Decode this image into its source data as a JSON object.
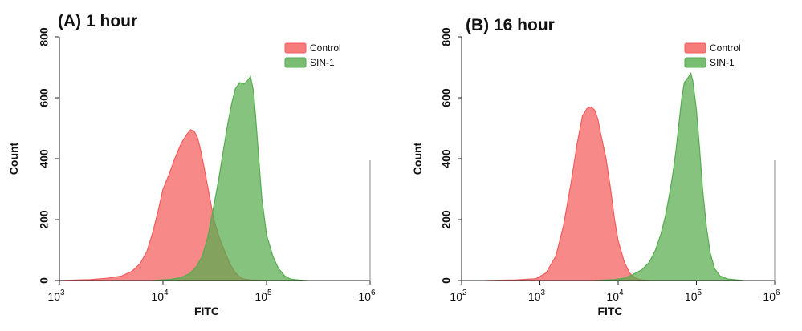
{
  "chart_data": [
    {
      "type": "area",
      "title": "(A) 1 hour",
      "xlabel": "FITC",
      "ylabel": "Count",
      "x_scale": "log",
      "xlim": [
        1000,
        1000000
      ],
      "ylim": [
        0,
        800
      ],
      "x_ticks": [
        {
          "base": "10",
          "exp": "3",
          "value": 1000
        },
        {
          "base": "10",
          "exp": "4",
          "value": 10000
        },
        {
          "base": "10",
          "exp": "5",
          "value": 100000
        },
        {
          "base": "10",
          "exp": "6",
          "value": 1000000
        }
      ],
      "y_ticks": [
        "0",
        "200",
        "400",
        "600",
        "800"
      ],
      "legend_position": "top-right",
      "series": [
        {
          "name": "Control",
          "color": "#f45b5b",
          "x": [
            1000,
            2000,
            3000,
            4000,
            5000,
            6000,
            7000,
            8000,
            9000,
            10000,
            11500,
            13000,
            15000,
            17000,
            18500,
            20000,
            21500,
            23000,
            25000,
            28000,
            31000,
            35000,
            40000,
            45000,
            50000,
            55000,
            60000,
            70000,
            100000
          ],
          "y": [
            0,
            3,
            8,
            15,
            30,
            55,
            95,
            160,
            230,
            300,
            350,
            400,
            450,
            480,
            495,
            490,
            470,
            430,
            370,
            280,
            200,
            140,
            90,
            50,
            25,
            12,
            5,
            2,
            0
          ]
        },
        {
          "name": "SIN-1",
          "color": "#56ac4e",
          "x": [
            8000,
            12000,
            15000,
            18000,
            21000,
            24000,
            27000,
            30000,
            34000,
            38000,
            42000,
            46000,
            50000,
            55000,
            60000,
            65000,
            70000,
            75000,
            80000,
            85000,
            90000,
            100000,
            115000,
            130000,
            150000,
            170000,
            200000,
            250000
          ],
          "y": [
            0,
            4,
            10,
            22,
            45,
            80,
            140,
            220,
            320,
            420,
            510,
            580,
            630,
            650,
            645,
            655,
            670,
            620,
            500,
            380,
            270,
            150,
            80,
            40,
            15,
            5,
            2,
            0
          ]
        }
      ]
    },
    {
      "type": "area",
      "title": "(B) 16 hour",
      "xlabel": "FITC",
      "ylabel": "Count",
      "x_scale": "log",
      "xlim": [
        100,
        1000000
      ],
      "ylim": [
        0,
        800
      ],
      "x_ticks": [
        {
          "base": "10",
          "exp": "2",
          "value": 100
        },
        {
          "base": "10",
          "exp": "3",
          "value": 1000
        },
        {
          "base": "10",
          "exp": "4",
          "value": 10000
        },
        {
          "base": "10",
          "exp": "5",
          "value": 100000
        },
        {
          "base": "10",
          "exp": "6",
          "value": 1000000
        }
      ],
      "y_ticks": [
        "0",
        "200",
        "400",
        "600",
        "800"
      ],
      "legend_position": "top-right",
      "series": [
        {
          "name": "Control",
          "color": "#f45b5b",
          "x": [
            200,
            500,
            900,
            1200,
            1600,
            2000,
            2500,
            3000,
            3500,
            4000,
            4500,
            5000,
            5500,
            6000,
            7000,
            8000,
            9000,
            10000,
            12000,
            14000,
            16000,
            18000,
            20000,
            25000
          ],
          "y": [
            0,
            2,
            6,
            25,
            80,
            180,
            320,
            450,
            540,
            565,
            570,
            560,
            530,
            480,
            400,
            300,
            200,
            130,
            60,
            25,
            10,
            5,
            2,
            0
          ]
        },
        {
          "name": "SIN-1",
          "color": "#56ac4e",
          "x": [
            5000,
            9000,
            12000,
            15000,
            20000,
            25000,
            30000,
            35000,
            40000,
            45000,
            50000,
            55000,
            60000,
            65000,
            70000,
            75000,
            80000,
            85000,
            90000,
            100000,
            110000,
            120000,
            135000,
            150000,
            170000,
            200000,
            250000,
            400000
          ],
          "y": [
            0,
            3,
            8,
            18,
            35,
            60,
            100,
            150,
            210,
            280,
            350,
            430,
            520,
            600,
            650,
            660,
            670,
            680,
            655,
            560,
            430,
            300,
            170,
            90,
            40,
            15,
            5,
            0
          ]
        }
      ]
    }
  ]
}
